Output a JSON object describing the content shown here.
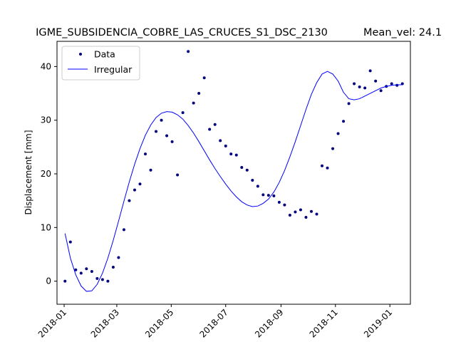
{
  "chart_data": {
    "type": "scatter",
    "title": "IGME_SUBSIDENCIA_COBRE_LAS_CRUCES_S1_DSC_2130",
    "subtitle": "Mean_vel: 24.1",
    "xlabel": "",
    "ylabel": "Displacement [mm]",
    "x_type": "date",
    "xlim": [
      "2017-12-24",
      "2019-01-24"
    ],
    "ylim": [
      -4.3,
      44.7
    ],
    "x_ticks": [
      "2018-01-01",
      "2018-03-01",
      "2018-05-01",
      "2018-07-01",
      "2018-09-01",
      "2018-11-01",
      "2019-01-01"
    ],
    "x_tick_labels": [
      "2018-01",
      "2018-03",
      "2018-05",
      "2018-07",
      "2018-09",
      "2018-11",
      "2019-01"
    ],
    "y_ticks": [
      0,
      10,
      20,
      30,
      40
    ],
    "y_tick_labels": [
      "0",
      "10",
      "20",
      "30",
      "40"
    ],
    "grid": false,
    "legend_position": "top-left",
    "series": [
      {
        "name": "Data",
        "style": "points",
        "color": "#00007f",
        "x": [
          "2018-01-02",
          "2018-01-08",
          "2018-01-14",
          "2018-01-20",
          "2018-01-26",
          "2018-02-01",
          "2018-02-07",
          "2018-02-13",
          "2018-02-19",
          "2018-02-25",
          "2018-03-03",
          "2018-03-09",
          "2018-03-15",
          "2018-03-21",
          "2018-03-27",
          "2018-04-02",
          "2018-04-08",
          "2018-04-14",
          "2018-04-20",
          "2018-04-26",
          "2018-05-02",
          "2018-05-08",
          "2018-05-14",
          "2018-05-20",
          "2018-05-26",
          "2018-06-01",
          "2018-06-07",
          "2018-06-13",
          "2018-06-19",
          "2018-06-25",
          "2018-07-01",
          "2018-07-07",
          "2018-07-13",
          "2018-07-19",
          "2018-07-25",
          "2018-07-31",
          "2018-08-06",
          "2018-08-12",
          "2018-08-18",
          "2018-08-24",
          "2018-08-30",
          "2018-09-05",
          "2018-09-11",
          "2018-09-17",
          "2018-09-23",
          "2018-09-29",
          "2018-10-05",
          "2018-10-11",
          "2018-10-17",
          "2018-10-23",
          "2018-10-29",
          "2018-11-04",
          "2018-11-10",
          "2018-11-16",
          "2018-11-22",
          "2018-11-28",
          "2018-12-04",
          "2018-12-10",
          "2018-12-16",
          "2018-12-22",
          "2018-12-28",
          "2019-01-03",
          "2019-01-09",
          "2019-01-15"
        ],
        "y": [
          0.0,
          7.3,
          2.1,
          1.5,
          2.3,
          1.8,
          0.5,
          0.3,
          0.0,
          2.6,
          4.4,
          9.6,
          15.0,
          17.0,
          18.1,
          23.7,
          20.7,
          27.9,
          30.0,
          27.1,
          26.0,
          19.8,
          31.4,
          42.8,
          33.2,
          35.0,
          37.9,
          28.3,
          29.2,
          26.2,
          25.2,
          23.7,
          23.5,
          21.2,
          20.7,
          18.8,
          17.7,
          16.1,
          16.0,
          15.9,
          14.7,
          14.2,
          12.3,
          12.9,
          13.3,
          11.9,
          13.0,
          12.5,
          21.5,
          21.1,
          24.7,
          27.5,
          29.8,
          33.1,
          36.8,
          36.2,
          36.0,
          39.2,
          37.3,
          35.5,
          36.3,
          36.8,
          36.5,
          36.8
        ]
      },
      {
        "name": "Irregular",
        "style": "line",
        "color": "#0000ff",
        "x": [
          "2018-01-02",
          "2018-01-08",
          "2018-01-14",
          "2018-01-20",
          "2018-01-26",
          "2018-02-01",
          "2018-02-07",
          "2018-02-13",
          "2018-02-19",
          "2018-02-25",
          "2018-03-03",
          "2018-03-09",
          "2018-03-15",
          "2018-03-21",
          "2018-03-27",
          "2018-04-02",
          "2018-04-08",
          "2018-04-14",
          "2018-04-20",
          "2018-04-26",
          "2018-05-02",
          "2018-05-08",
          "2018-05-14",
          "2018-05-20",
          "2018-05-26",
          "2018-06-01",
          "2018-06-07",
          "2018-06-13",
          "2018-06-19",
          "2018-06-25",
          "2018-07-01",
          "2018-07-07",
          "2018-07-13",
          "2018-07-19",
          "2018-07-25",
          "2018-07-31",
          "2018-08-06",
          "2018-08-12",
          "2018-08-18",
          "2018-08-24",
          "2018-08-30",
          "2018-09-05",
          "2018-09-11",
          "2018-09-17",
          "2018-09-23",
          "2018-09-29",
          "2018-10-05",
          "2018-10-11",
          "2018-10-17",
          "2018-10-23",
          "2018-10-29",
          "2018-11-04",
          "2018-11-10",
          "2018-11-16",
          "2018-11-22",
          "2018-11-28",
          "2018-12-04",
          "2018-12-10",
          "2018-12-16",
          "2018-12-22",
          "2018-12-28",
          "2019-01-03",
          "2019-01-09",
          "2019-01-15"
        ],
        "y": [
          8.9,
          4.3,
          1.2,
          -0.9,
          -1.9,
          -1.8,
          -0.6,
          1.5,
          4.3,
          7.6,
          11.2,
          14.9,
          18.5,
          21.8,
          24.7,
          27.2,
          29.1,
          30.5,
          31.3,
          31.6,
          31.5,
          31.0,
          30.2,
          29.0,
          27.6,
          26.0,
          24.3,
          22.6,
          21.0,
          19.5,
          18.1,
          16.8,
          15.7,
          14.8,
          14.2,
          13.9,
          14.0,
          14.5,
          15.3,
          16.6,
          18.4,
          20.6,
          23.2,
          26.0,
          29.0,
          32.0,
          34.8,
          37.0,
          38.6,
          39.1,
          38.6,
          37.3,
          35.2,
          34.0,
          33.8,
          34.0,
          34.5,
          35.0,
          35.5,
          36.0,
          36.3,
          36.5,
          36.6,
          36.6
        ]
      }
    ]
  }
}
